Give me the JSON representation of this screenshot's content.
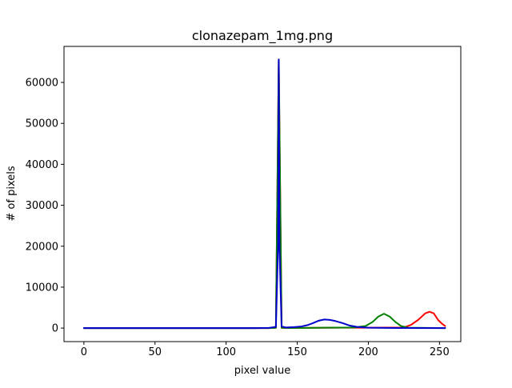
{
  "chart_data": {
    "type": "line",
    "title": "clonazepam_1mg.png",
    "xlabel": "pixel value",
    "ylabel": "# of pixels",
    "xlim": [
      -14,
      265
    ],
    "ylim": [
      -3300,
      68800
    ],
    "xticks": [
      0,
      50,
      100,
      150,
      200,
      250
    ],
    "yticks": [
      0,
      10000,
      20000,
      30000,
      40000,
      50000,
      60000
    ],
    "grid": false,
    "legend": "none",
    "series": [
      {
        "color": "#ff0000",
        "points": [
          [
            0,
            0
          ],
          [
            50,
            0
          ],
          [
            100,
            0
          ],
          [
            130,
            0
          ],
          [
            135,
            80
          ],
          [
            137,
            65600
          ],
          [
            139,
            80
          ],
          [
            145,
            20
          ],
          [
            160,
            60
          ],
          [
            180,
            100
          ],
          [
            200,
            100
          ],
          [
            225,
            150
          ],
          [
            230,
            800
          ],
          [
            235,
            2000
          ],
          [
            240,
            3600
          ],
          [
            243,
            4000
          ],
          [
            246,
            3600
          ],
          [
            249,
            2000
          ],
          [
            252,
            1000
          ],
          [
            254,
            500
          ]
        ]
      },
      {
        "color": "#008000",
        "points": [
          [
            0,
            0
          ],
          [
            50,
            0
          ],
          [
            100,
            0
          ],
          [
            130,
            0
          ],
          [
            135,
            80
          ],
          [
            137,
            65600
          ],
          [
            139,
            80
          ],
          [
            145,
            20
          ],
          [
            170,
            100
          ],
          [
            190,
            150
          ],
          [
            198,
            500
          ],
          [
            203,
            1500
          ],
          [
            207,
            2800
          ],
          [
            211,
            3500
          ],
          [
            215,
            2800
          ],
          [
            219,
            1500
          ],
          [
            223,
            500
          ],
          [
            228,
            100
          ],
          [
            254,
            0
          ]
        ]
      },
      {
        "color": "#0000cc",
        "points": [
          [
            0,
            0
          ],
          [
            50,
            0
          ],
          [
            100,
            0
          ],
          [
            120,
            0
          ],
          [
            130,
            50
          ],
          [
            135,
            300
          ],
          [
            136.5,
            20000
          ],
          [
            137,
            65600
          ],
          [
            137.5,
            20000
          ],
          [
            139,
            400
          ],
          [
            142,
            150
          ],
          [
            148,
            250
          ],
          [
            153,
            400
          ],
          [
            157,
            700
          ],
          [
            161,
            1200
          ],
          [
            165,
            1800
          ],
          [
            169,
            2100
          ],
          [
            173,
            2000
          ],
          [
            177,
            1700
          ],
          [
            182,
            1200
          ],
          [
            187,
            600
          ],
          [
            192,
            300
          ],
          [
            200,
            100
          ],
          [
            220,
            30
          ],
          [
            254,
            0
          ]
        ]
      }
    ]
  }
}
